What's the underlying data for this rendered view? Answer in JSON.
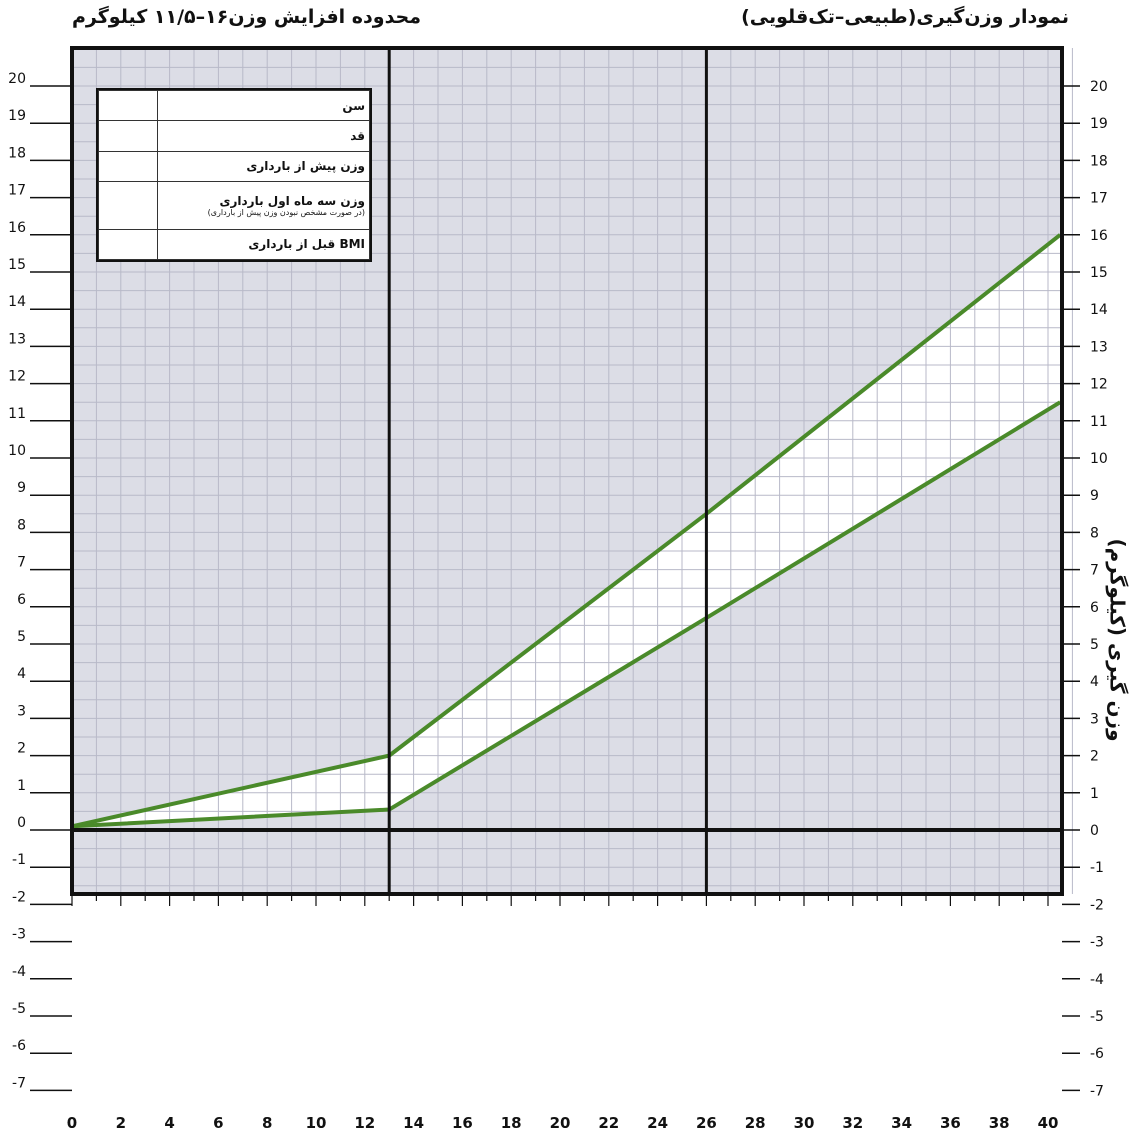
{
  "titles": {
    "left": "محدوده افزایش وزن۱۶–۱۱/۵ کیلوگرم",
    "right": "نمودار وزن‌گیری(طبیعی–تک‌قلویی)"
  },
  "info_box": {
    "rows": [
      {
        "label": "سن",
        "note": ""
      },
      {
        "label": "قد",
        "note": ""
      },
      {
        "label": "وزن پیش از بارداری",
        "note": ""
      },
      {
        "label": "وزن سه ماه اول بارداری",
        "note": "(در صورت مشخص نبودن وزن پیش از بارداری)"
      },
      {
        "label": "BMI قبل از بارداری",
        "note": ""
      }
    ]
  },
  "colors": {
    "background": "#ffffff",
    "grid_fill": "#dcdde6",
    "grid_line": "#b8b9c8",
    "band_fill": "#ffffff",
    "line": "#4a8a2a",
    "axis": "#111111"
  },
  "chart_data": {
    "type": "line",
    "title": "",
    "xlabel": "",
    "ylabel": "وزن گیری (کیلوگرم)",
    "xlim": [
      0,
      41
    ],
    "ylim": [
      -7,
      20.5
    ],
    "x_ticks": [
      0,
      2,
      4,
      6,
      8,
      10,
      12,
      14,
      16,
      18,
      20,
      22,
      24,
      26,
      28,
      30,
      32,
      34,
      36,
      38,
      40
    ],
    "y_ticks": [
      -7,
      -6,
      -5,
      -4,
      -3,
      -2,
      -1,
      0,
      1,
      2,
      3,
      4,
      5,
      6,
      7,
      8,
      9,
      10,
      11,
      12,
      13,
      14,
      15,
      16,
      17,
      18,
      19,
      20
    ],
    "vertical_markers": [
      13,
      26
    ],
    "grid": true,
    "band_shaded": true,
    "series": [
      {
        "x": [
          0,
          13,
          26,
          40.5
        ],
        "values": [
          0.1,
          2.0,
          8.5,
          16.0
        ]
      },
      {
        "x": [
          0,
          13,
          26,
          40.5
        ],
        "values": [
          0.1,
          0.55,
          5.7,
          11.5
        ]
      }
    ]
  }
}
